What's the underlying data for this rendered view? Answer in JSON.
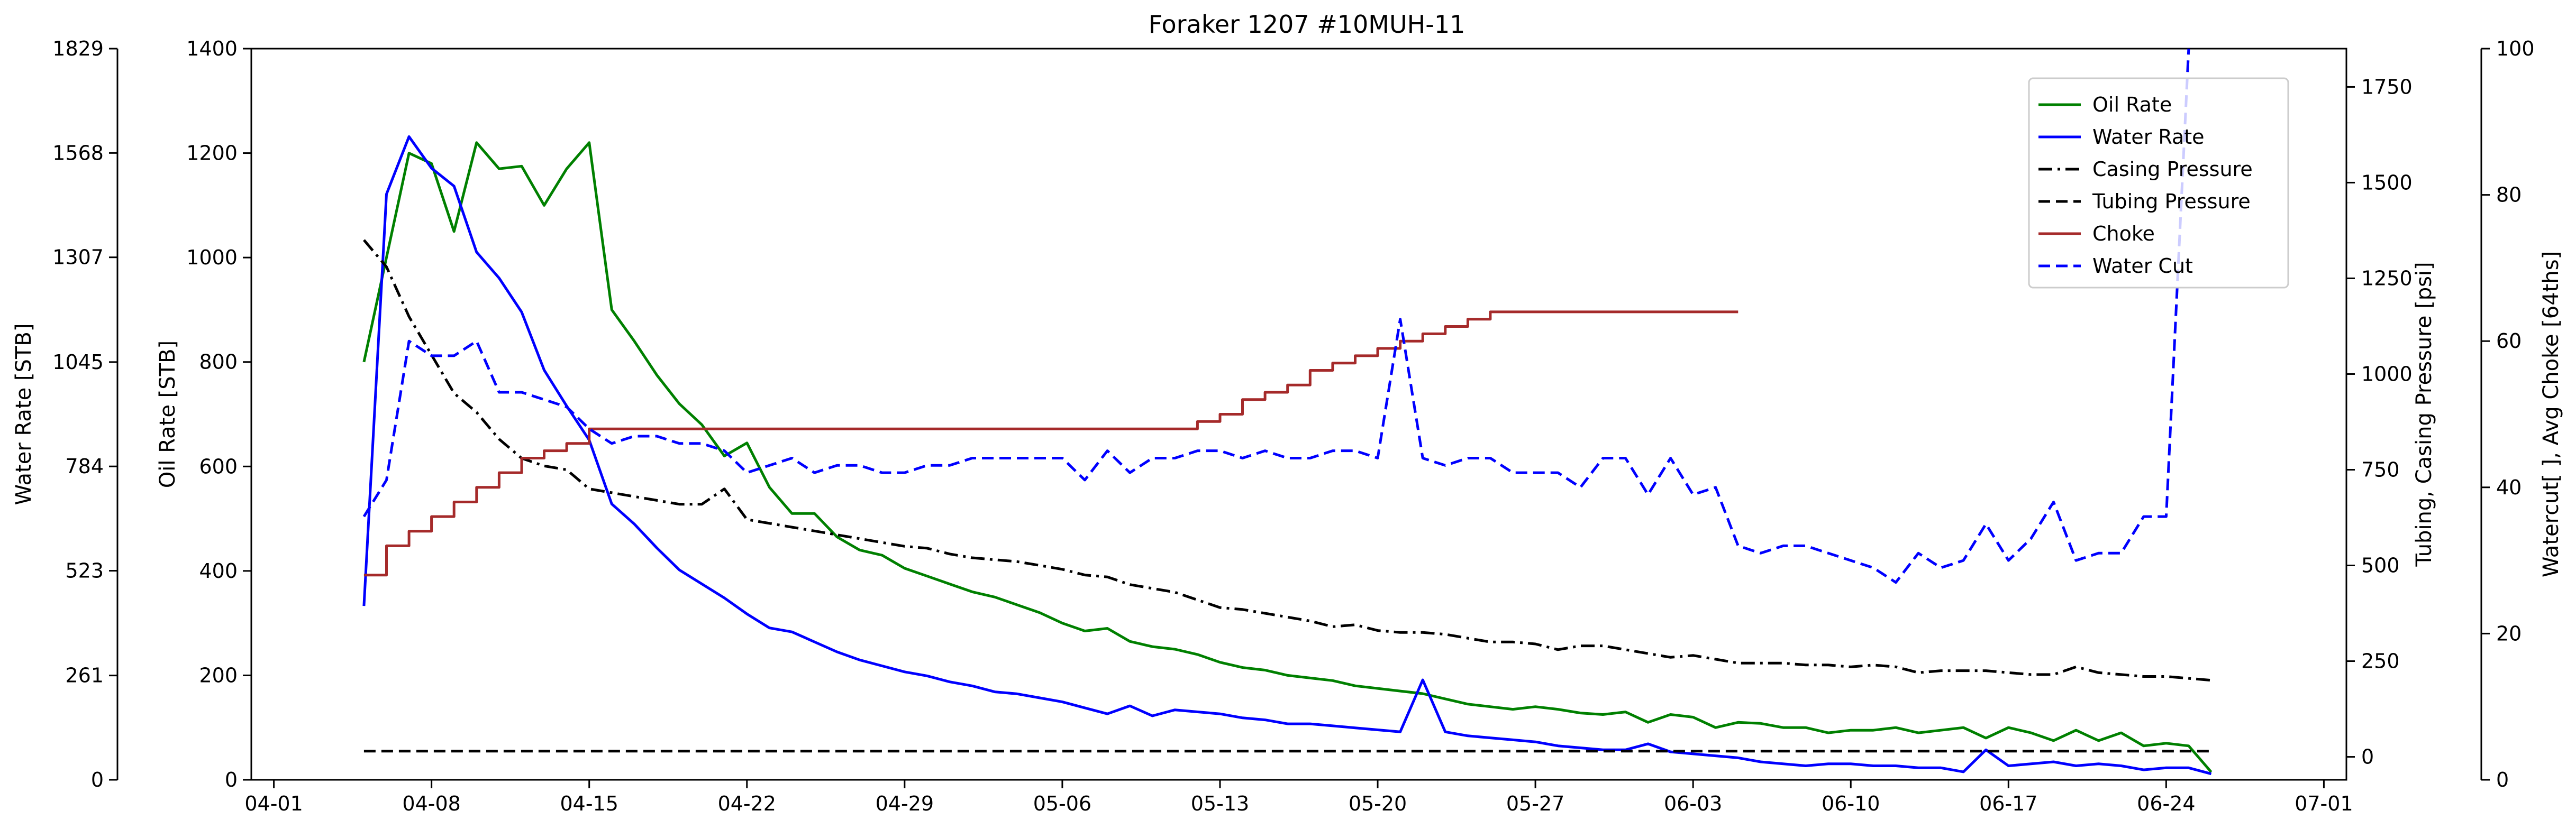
{
  "chart_data": {
    "type": "line",
    "title": "Foraker 1207 #10MUH-11",
    "x_start": "2019-04-05",
    "xlim": [
      "2019-03-31",
      "2019-07-02"
    ],
    "x_ticks": [
      "2019-04-01",
      "2019-04-08",
      "2019-04-15",
      "2019-04-22",
      "2019-04-29",
      "2019-05-06",
      "2019-05-13",
      "2019-05-20",
      "2019-05-27",
      "2019-06-03",
      "2019-06-10",
      "2019-06-17",
      "2019-06-24",
      "2019-07-01"
    ],
    "x_tick_labels": [
      "04-01",
      "04-08",
      "04-15",
      "04-22",
      "04-29",
      "05-06",
      "05-13",
      "05-20",
      "05-27",
      "06-03",
      "06-10",
      "06-17",
      "06-24",
      "07-01"
    ],
    "axes": {
      "oil": {
        "label": "Oil Rate [STB]",
        "ylim": [
          0,
          1400
        ],
        "ticks": [
          0,
          200,
          400,
          600,
          800,
          1000,
          1200,
          1400
        ]
      },
      "water": {
        "label": "Water Rate [STB]",
        "ylim": [
          0,
          1829
        ],
        "ticks": [
          0,
          261,
          523,
          784,
          1045,
          1307,
          1568,
          1829
        ]
      },
      "pressure": {
        "label": "Tubing, Casing Pressure [psi]",
        "ylim": [
          -60,
          1850
        ],
        "ticks": [
          0,
          250,
          500,
          750,
          1000,
          1250,
          1500,
          1750
        ]
      },
      "pct": {
        "label": "Watercut[ ], Avg Choke [64ths]",
        "ylim": [
          0,
          100
        ],
        "ticks": [
          0,
          20,
          40,
          60,
          80,
          100
        ]
      }
    },
    "legend_position": "top-right",
    "series": [
      {
        "name": "Oil Rate",
        "axis": "oil",
        "color": "#008000",
        "dash": "solid",
        "values": [
          800,
          1000,
          1200,
          1180,
          1050,
          1220,
          1170,
          1175,
          1100,
          1170,
          1220,
          900,
          840,
          775,
          720,
          680,
          620,
          645,
          560,
          510,
          510,
          465,
          440,
          430,
          405,
          390,
          375,
          360,
          350,
          335,
          320,
          300,
          285,
          290,
          265,
          255,
          250,
          240,
          225,
          215,
          210,
          200,
          195,
          190,
          180,
          175,
          170,
          165,
          155,
          145,
          140,
          135,
          140,
          135,
          128,
          125,
          130,
          110,
          125,
          120,
          100,
          110,
          108,
          100,
          100,
          90,
          95,
          95,
          100,
          90,
          95,
          100,
          80,
          100,
          90,
          75,
          95,
          75,
          90,
          65,
          70,
          65,
          15
        ]
      },
      {
        "name": "Water Rate",
        "axis": "water",
        "color": "#0000ff",
        "dash": "solid",
        "values": [
          435,
          1465,
          1609,
          1530,
          1485,
          1320,
          1255,
          1170,
          1025,
          935,
          850,
          690,
          640,
          580,
          525,
          490,
          455,
          415,
          380,
          370,
          345,
          320,
          300,
          285,
          270,
          260,
          245,
          235,
          220,
          215,
          205,
          195,
          180,
          165,
          185,
          160,
          175,
          170,
          165,
          155,
          150,
          140,
          140,
          135,
          130,
          125,
          120,
          250,
          120,
          110,
          105,
          100,
          95,
          85,
          80,
          75,
          75,
          90,
          70,
          65,
          60,
          55,
          45,
          40,
          35,
          40,
          40,
          35,
          35,
          30,
          30,
          20,
          75,
          35,
          40,
          45,
          35,
          40,
          35,
          25,
          30,
          30,
          15
        ]
      },
      {
        "name": "Casing Pressure",
        "axis": "pressure",
        "color": "#000000",
        "dash": "dashdot",
        "values": [
          1350,
          1280,
          1150,
          1050,
          950,
          900,
          830,
          780,
          760,
          750,
          700,
          690,
          680,
          670,
          660,
          660,
          700,
          620,
          610,
          600,
          590,
          580,
          570,
          560,
          550,
          545,
          530,
          520,
          515,
          510,
          500,
          490,
          475,
          470,
          450,
          440,
          430,
          410,
          390,
          385,
          375,
          365,
          355,
          340,
          345,
          330,
          325,
          325,
          320,
          310,
          300,
          300,
          295,
          280,
          290,
          290,
          280,
          270,
          260,
          265,
          255,
          245,
          245,
          245,
          240,
          240,
          235,
          240,
          235,
          220,
          225,
          225,
          225,
          220,
          215,
          215,
          235,
          220,
          215,
          210,
          210,
          205,
          200
        ]
      },
      {
        "name": "Tubing Pressure",
        "axis": "pressure",
        "color": "#000000",
        "dash": "dashed",
        "values": [
          15,
          15,
          15,
          15,
          15,
          15,
          15,
          15,
          15,
          15,
          15,
          15,
          15,
          15,
          15,
          15,
          15,
          15,
          15,
          15,
          15,
          15,
          15,
          15,
          15,
          15,
          15,
          15,
          15,
          15,
          15,
          15,
          15,
          15,
          15,
          15,
          15,
          15,
          15,
          15,
          15,
          15,
          15,
          15,
          15,
          15,
          15,
          15,
          15,
          15,
          15,
          15,
          15,
          15,
          15,
          15,
          15,
          15,
          15,
          15,
          15,
          15,
          15,
          15,
          15,
          15,
          15,
          15,
          15,
          15,
          15,
          15,
          15,
          15,
          15,
          15,
          15,
          15,
          15,
          15,
          15,
          15,
          15
        ]
      },
      {
        "name": "Choke",
        "axis": "pct",
        "color": "#a52a2a",
        "dash": "steps",
        "values": [
          28,
          32,
          34,
          36,
          38,
          40,
          42,
          44,
          45,
          46,
          48,
          48,
          48,
          48,
          48,
          48,
          48,
          48,
          48,
          48,
          48,
          48,
          48,
          48,
          48,
          48,
          48,
          48,
          48,
          48,
          48,
          48,
          48,
          48,
          48,
          48,
          48,
          49,
          50,
          52,
          53,
          54,
          56,
          57,
          58,
          59,
          60,
          61,
          62,
          63,
          64,
          64,
          64,
          64,
          64,
          64,
          64,
          64,
          64,
          64,
          64,
          64
        ]
      },
      {
        "name": "Water Cut",
        "axis": "pct",
        "color": "#0000ff",
        "dash": "dashed",
        "values": [
          36,
          41,
          60,
          58,
          58,
          60,
          53,
          53,
          52,
          51,
          48,
          46,
          47,
          47,
          46,
          46,
          45,
          42,
          43,
          44,
          42,
          43,
          43,
          42,
          42,
          43,
          43,
          44,
          44,
          44,
          44,
          44,
          41,
          45,
          42,
          44,
          44,
          45,
          45,
          44,
          45,
          44,
          44,
          45,
          45,
          44,
          63,
          44,
          43,
          44,
          44,
          42,
          42,
          42,
          40,
          44,
          44,
          39,
          44,
          39,
          40,
          32,
          31,
          32,
          32,
          31,
          30,
          29,
          27,
          31,
          29,
          30,
          35,
          30,
          33,
          38,
          30,
          31,
          31,
          36,
          36,
          100
        ]
      }
    ]
  }
}
